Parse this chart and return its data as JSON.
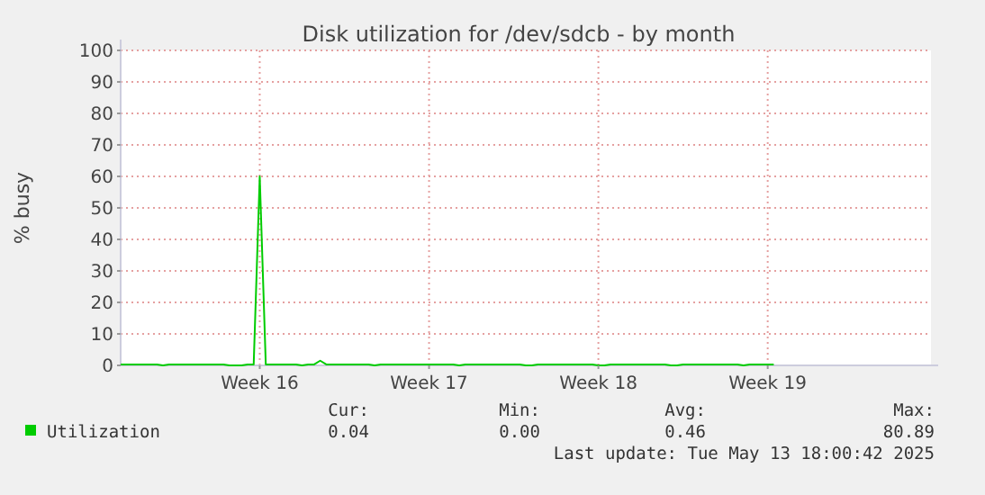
{
  "chart_data": {
    "type": "line",
    "title": "Disk utilization for /dev/sdcb - by month",
    "ylabel": "% busy",
    "categories": [
      null,
      null,
      null,
      null,
      null,
      null,
      null,
      null,
      null,
      null,
      null,
      null,
      null,
      null,
      null,
      null,
      null,
      null,
      null,
      null,
      null,
      null,
      null,
      "Week 16",
      null,
      null,
      null,
      null,
      null,
      null,
      null,
      null,
      null,
      null,
      null,
      null,
      null,
      null,
      null,
      null,
      null,
      null,
      null,
      null,
      null,
      null,
      null,
      null,
      null,
      null,
      null,
      "Week 17",
      null,
      null,
      null,
      null,
      null,
      null,
      null,
      null,
      null,
      null,
      null,
      null,
      null,
      null,
      null,
      null,
      null,
      null,
      null,
      null,
      null,
      null,
      null,
      null,
      null,
      null,
      null,
      "Week 18",
      null,
      null,
      null,
      null,
      null,
      null,
      null,
      null,
      null,
      null,
      null,
      null,
      null,
      null,
      null,
      null,
      null,
      null,
      null,
      null,
      null,
      null,
      null,
      null,
      null,
      null,
      null,
      "Week 19",
      null,
      null,
      null,
      null,
      null,
      null,
      null,
      null,
      null,
      null,
      null,
      null,
      null,
      null,
      null,
      null,
      null,
      null,
      null,
      null,
      null,
      null,
      null,
      null,
      null,
      null,
      null
    ],
    "ylim": [
      0,
      100
    ],
    "yticks": [
      0,
      10,
      20,
      30,
      40,
      50,
      60,
      70,
      80,
      90,
      100
    ],
    "grid": true,
    "legend": "bottom",
    "marker": "none",
    "line_style": "solid",
    "series": [
      {
        "name": "Utilization",
        "color": "#00cc00",
        "values": [
          0.3,
          0.3,
          0.3,
          0.3,
          0.3,
          0.3,
          0.3,
          0,
          0.3,
          0.3,
          0.3,
          0.3,
          0.3,
          0.3,
          0.3,
          0.3,
          0.3,
          0.3,
          0,
          0,
          0,
          0.3,
          0.3,
          60,
          0.3,
          0.3,
          0.3,
          0.3,
          0.3,
          0.3,
          0,
          0.3,
          0.3,
          1.5,
          0.3,
          0.3,
          0.3,
          0.3,
          0.3,
          0.3,
          0.3,
          0.3,
          0,
          0.3,
          0.3,
          0.3,
          0.3,
          0.3,
          0.3,
          0.3,
          0.3,
          0.3,
          0.3,
          0.3,
          0.3,
          0.3,
          0,
          0.3,
          0.3,
          0.3,
          0.3,
          0.3,
          0.3,
          0.3,
          0.3,
          0.3,
          0.3,
          0,
          0,
          0.3,
          0.3,
          0.3,
          0.3,
          0.3,
          0.3,
          0.3,
          0.3,
          0.3,
          0.3,
          0,
          0,
          0.3,
          0.3,
          0.3,
          0.3,
          0.3,
          0.3,
          0.3,
          0.3,
          0.3,
          0.3,
          0,
          0,
          0.3,
          0.3,
          0.3,
          0.3,
          0.3,
          0.3,
          0.3,
          0.3,
          0.3,
          0.3,
          0,
          0.3,
          0.3,
          0.3,
          0.3,
          0.3,
          null,
          null,
          null,
          null,
          null,
          null,
          null,
          null,
          null,
          null,
          null,
          null,
          null,
          null,
          null,
          null,
          null,
          null,
          null,
          null,
          null,
          null,
          null,
          null,
          null,
          null
        ]
      }
    ],
    "annotations": [
      "Cur:",
      "Min:",
      "Avg:",
      "Max:",
      "0.04",
      "0.00",
      "0.46",
      "80.89",
      "Last update: Tue May 13 18:00:42 2025"
    ]
  }
}
